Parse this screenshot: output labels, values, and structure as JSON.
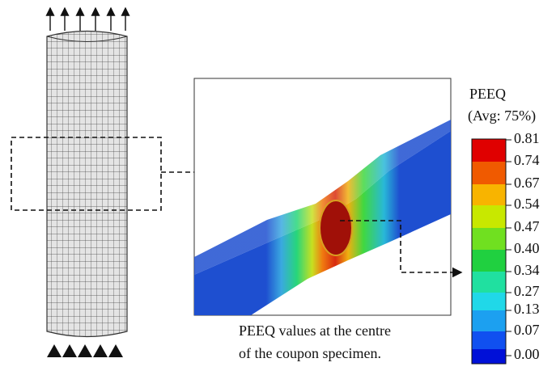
{
  "legend": {
    "title": "PEEQ",
    "subtitle": "(Avg: 75%)",
    "labels": [
      "0.81",
      "0.74",
      "0.67",
      "0.54",
      "0.47",
      "0.40",
      "0.34",
      "0.27",
      "0.13",
      "0.07",
      "0.00"
    ]
  },
  "caption": [
    "PEEQ values at the centre",
    "of the coupon specimen."
  ]
}
